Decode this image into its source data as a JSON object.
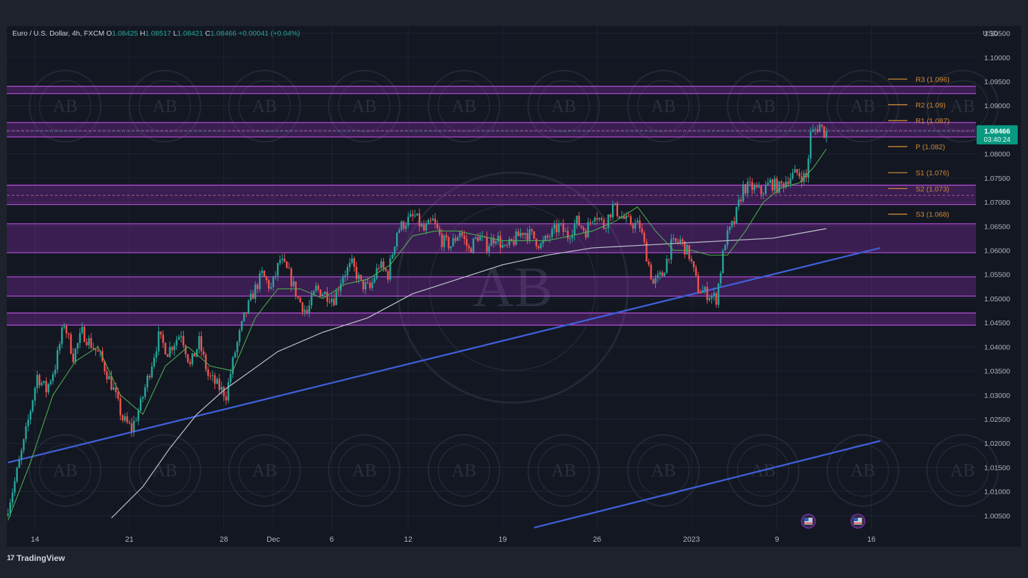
{
  "header": {
    "symbol": "Euro / U.S. Dollar, 4h, FXCM",
    "o_label": "O",
    "o": "1.08425",
    "h_label": "H",
    "h": "1.08517",
    "l_label": "L",
    "l": "1.08421",
    "c_label": "C",
    "c": "1.08466",
    "change": "+0.00041 (+0.04%)"
  },
  "brand": {
    "name": "TradingView",
    "mark_text": "17"
  },
  "chart_data": {
    "type": "candlestick",
    "currency": "USD",
    "ylim": [
      1.002,
      1.1065
    ],
    "y_ticks": [
      "1.10500",
      "1.10000",
      "1.09500",
      "1.09000",
      "1.08500",
      "1.08000",
      "1.07500",
      "1.07000",
      "1.06500",
      "1.06000",
      "1.05500",
      "1.05000",
      "1.04500",
      "1.04000",
      "1.03500",
      "1.03000",
      "1.02500",
      "1.02000",
      "1.01500",
      "1.01000",
      "1.00500"
    ],
    "x_ticks": [
      {
        "label": "14",
        "bar": 12
      },
      {
        "label": "21",
        "bar": 54
      },
      {
        "label": "28",
        "bar": 96
      },
      {
        "label": "Dec",
        "bar": 118
      },
      {
        "label": "6",
        "bar": 144
      },
      {
        "label": "12",
        "bar": 178
      },
      {
        "label": "19",
        "bar": 220
      },
      {
        "label": "26",
        "bar": 262
      },
      {
        "label": "2023",
        "bar": 304
      },
      {
        "label": "9",
        "bar": 342
      },
      {
        "label": "16",
        "bar": 384
      }
    ],
    "bar_count": 431,
    "last_bar": 388,
    "anchors": [
      [
        0,
        1.005
      ],
      [
        4,
        1.012
      ],
      [
        8,
        1.02
      ],
      [
        14,
        1.034
      ],
      [
        18,
        1.031
      ],
      [
        22,
        1.036
      ],
      [
        26,
        1.045
      ],
      [
        30,
        1.038
      ],
      [
        34,
        1.043
      ],
      [
        42,
        1.038
      ],
      [
        48,
        1.031
      ],
      [
        52,
        1.025
      ],
      [
        56,
        1.023
      ],
      [
        60,
        1.028
      ],
      [
        64,
        1.035
      ],
      [
        68,
        1.042
      ],
      [
        72,
        1.039
      ],
      [
        78,
        1.043
      ],
      [
        82,
        1.036
      ],
      [
        86,
        1.041
      ],
      [
        90,
        1.034
      ],
      [
        94,
        1.032
      ],
      [
        98,
        1.03
      ],
      [
        102,
        1.039
      ],
      [
        106,
        1.046
      ],
      [
        110,
        1.051
      ],
      [
        114,
        1.055
      ],
      [
        118,
        1.052
      ],
      [
        122,
        1.058
      ],
      [
        126,
        1.055
      ],
      [
        130,
        1.05
      ],
      [
        134,
        1.047
      ],
      [
        138,
        1.052
      ],
      [
        142,
        1.051
      ],
      [
        146,
        1.05
      ],
      [
        150,
        1.055
      ],
      [
        154,
        1.057
      ],
      [
        158,
        1.053
      ],
      [
        162,
        1.052
      ],
      [
        166,
        1.057
      ],
      [
        170,
        1.055
      ],
      [
        174,
        1.064
      ],
      [
        178,
        1.066
      ],
      [
        182,
        1.067
      ],
      [
        186,
        1.064
      ],
      [
        190,
        1.066
      ],
      [
        194,
        1.062
      ],
      [
        198,
        1.061
      ],
      [
        202,
        1.064
      ],
      [
        206,
        1.06
      ],
      [
        210,
        1.063
      ],
      [
        214,
        1.061
      ],
      [
        218,
        1.063
      ],
      [
        222,
        1.06
      ],
      [
        226,
        1.062
      ],
      [
        230,
        1.064
      ],
      [
        234,
        1.063
      ],
      [
        238,
        1.061
      ],
      [
        242,
        1.063
      ],
      [
        246,
        1.065
      ],
      [
        250,
        1.063
      ],
      [
        254,
        1.066
      ],
      [
        258,
        1.064
      ],
      [
        262,
        1.068
      ],
      [
        266,
        1.065
      ],
      [
        270,
        1.069
      ],
      [
        276,
        1.066
      ],
      [
        282,
        1.065
      ],
      [
        288,
        1.053
      ],
      [
        292,
        1.055
      ],
      [
        296,
        1.061
      ],
      [
        300,
        1.062
      ],
      [
        304,
        1.059
      ],
      [
        308,
        1.052
      ],
      [
        312,
        1.051
      ],
      [
        316,
        1.05
      ],
      [
        320,
        1.062
      ],
      [
        324,
        1.066
      ],
      [
        328,
        1.073
      ],
      [
        332,
        1.073
      ],
      [
        336,
        1.072
      ],
      [
        340,
        1.074
      ],
      [
        344,
        1.073
      ],
      [
        348,
        1.075
      ],
      [
        352,
        1.076
      ],
      [
        356,
        1.075
      ],
      [
        358,
        1.084
      ],
      [
        362,
        1.086
      ],
      [
        364,
        1.0845
      ]
    ],
    "ma_fast": [
      [
        0,
        1.004
      ],
      [
        10,
        1.016
      ],
      [
        20,
        1.03
      ],
      [
        30,
        1.037
      ],
      [
        40,
        1.04
      ],
      [
        50,
        1.03
      ],
      [
        60,
        1.026
      ],
      [
        70,
        1.036
      ],
      [
        80,
        1.04
      ],
      [
        90,
        1.036
      ],
      [
        100,
        1.035
      ],
      [
        110,
        1.046
      ],
      [
        120,
        1.052
      ],
      [
        130,
        1.052
      ],
      [
        140,
        1.05
      ],
      [
        150,
        1.053
      ],
      [
        160,
        1.054
      ],
      [
        170,
        1.057
      ],
      [
        180,
        1.063
      ],
      [
        190,
        1.064
      ],
      [
        200,
        1.064
      ],
      [
        210,
        1.063
      ],
      [
        220,
        1.062
      ],
      [
        230,
        1.062
      ],
      [
        240,
        1.062
      ],
      [
        250,
        1.063
      ],
      [
        260,
        1.064
      ],
      [
        270,
        1.066
      ],
      [
        280,
        1.069
      ],
      [
        288,
        1.064
      ],
      [
        296,
        1.06
      ],
      [
        304,
        1.06
      ],
      [
        312,
        1.059
      ],
      [
        320,
        1.059
      ],
      [
        328,
        1.064
      ],
      [
        336,
        1.07
      ],
      [
        344,
        1.073
      ],
      [
        352,
        1.074
      ],
      [
        358,
        1.077
      ],
      [
        364,
        1.081
      ]
    ],
    "ma_slow": [
      [
        46,
        1.0045
      ],
      [
        60,
        1.011
      ],
      [
        72,
        1.019
      ],
      [
        84,
        1.026
      ],
      [
        96,
        1.031
      ],
      [
        108,
        1.035
      ],
      [
        120,
        1.039
      ],
      [
        140,
        1.043
      ],
      [
        160,
        1.046
      ],
      [
        180,
        1.051
      ],
      [
        200,
        1.054
      ],
      [
        220,
        1.057
      ],
      [
        240,
        1.059
      ],
      [
        260,
        1.0605
      ],
      [
        280,
        1.061
      ],
      [
        300,
        1.0615
      ],
      [
        320,
        1.062
      ],
      [
        340,
        1.0625
      ],
      [
        364,
        1.0645
      ]
    ],
    "trendlines": [
      {
        "from": [
          0,
          1.016
        ],
        "to": [
          388,
          1.0605
        ],
        "color": "#3f5fd6"
      },
      {
        "from": [
          234,
          1.0025
        ],
        "to": [
          388,
          1.0205
        ],
        "color": "#3f5fd6"
      }
    ],
    "zones": [
      {
        "top": 1.094,
        "bottom": 1.0925
      },
      {
        "top": 1.0865,
        "bottom": 1.0835
      },
      {
        "top": 1.0735,
        "bottom": 1.0695
      },
      {
        "top": 1.0655,
        "bottom": 1.0595
      },
      {
        "top": 1.0545,
        "bottom": 1.0505
      },
      {
        "top": 1.047,
        "bottom": 1.0445
      }
    ],
    "dashed_lines": [
      1.0848,
      1.0714
    ],
    "pivots": [
      {
        "label": "R3 (1.096)",
        "value": 1.0955,
        "color": "#d08a34"
      },
      {
        "label": "R2 (1.09)",
        "value": 1.0902,
        "color": "#d08a34"
      },
      {
        "label": "R1 (1.087)",
        "value": 1.0869,
        "color": "#d08a34"
      },
      {
        "label": "P (1.082)",
        "value": 1.0815,
        "color": "#d08a34"
      },
      {
        "label": "S1 (1.076)",
        "value": 1.0761,
        "color": "#d08a34"
      },
      {
        "label": "S2 (1.073)",
        "value": 1.0728,
        "color": "#d08a34"
      },
      {
        "label": "S3 (1.068)",
        "value": 1.0675,
        "color": "#d08a34"
      }
    ],
    "last_price": "1.08466",
    "last_price_value": 1.08466,
    "countdown": "03:40:24",
    "event_flags": [
      {
        "bar": 356
      },
      {
        "bar": 378
      }
    ],
    "colors": {
      "background": "#131722",
      "frame": "#1e222d",
      "grid": "#1f2433",
      "up": "#26a69a",
      "down": "#ef5350",
      "ma_fast": "#4caf50",
      "ma_slow": "#b8bcc8",
      "zone_fill": "#8e2fb3",
      "zone_line": "#b04dd6",
      "axis_text": "#b2b5be",
      "price_badge": "#089981"
    },
    "watermark": {
      "monogram": "AB",
      "ring_text": "ARABIAN BUSINESS ACADEMY"
    }
  }
}
